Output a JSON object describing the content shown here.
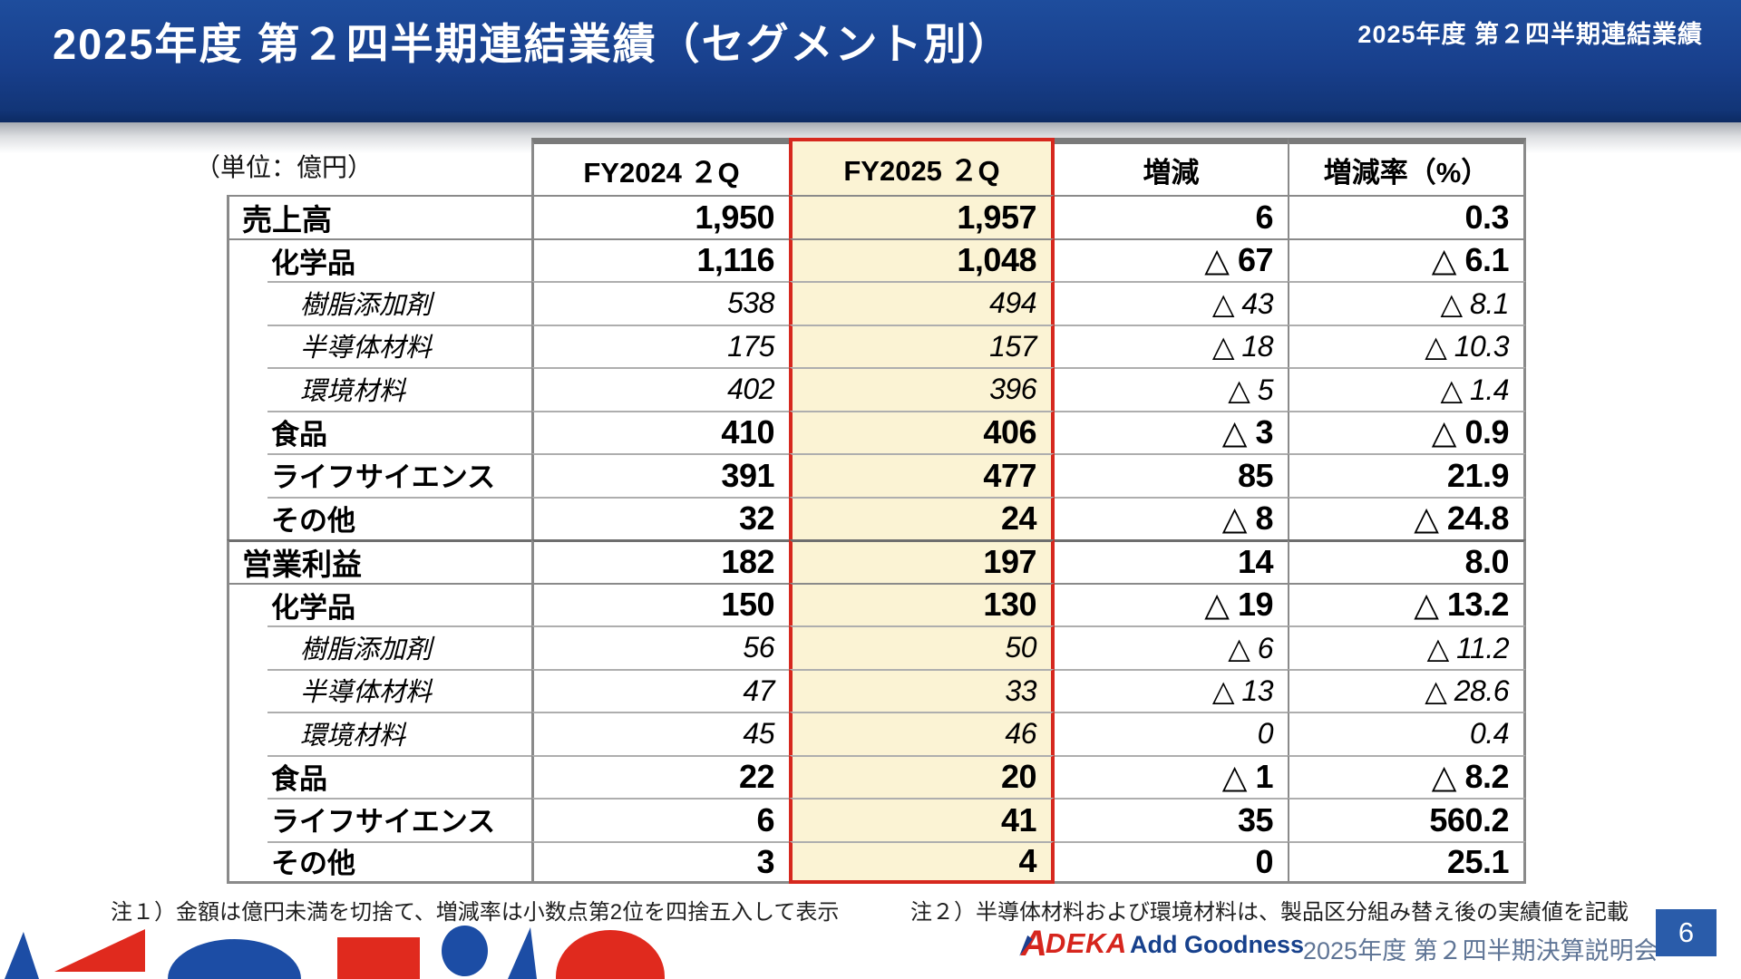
{
  "header": {
    "title": "2025年度 第２四半期連結業績（セグメント別）",
    "corner_label": "2025年度 第２四半期連結業績"
  },
  "table": {
    "unit_label": "（単位：億円）",
    "columns": [
      "FY2024 ２Q",
      "FY2025 ２Q",
      "増減",
      "増減率（%）"
    ],
    "rows": [
      {
        "label": "売上高",
        "level": 0,
        "italic": false,
        "sep": "major",
        "values": [
          "1,950",
          "1,957",
          "6",
          "0.3"
        ]
      },
      {
        "label": "化学品",
        "level": 1,
        "italic": false,
        "sep": "major",
        "values": [
          "1,116",
          "1,048",
          "△ 67",
          "△ 6.1"
        ]
      },
      {
        "label": "樹脂添加剤",
        "level": 2,
        "italic": true,
        "sep": "minor",
        "values": [
          "538",
          "494",
          "△ 43",
          "△ 8.1"
        ]
      },
      {
        "label": "半導体材料",
        "level": 2,
        "italic": true,
        "sep": "minor",
        "values": [
          "175",
          "157",
          "△ 18",
          "△ 10.3"
        ]
      },
      {
        "label": "環境材料",
        "level": 2,
        "italic": true,
        "sep": "minor",
        "values": [
          "402",
          "396",
          "△ 5",
          "△ 1.4"
        ]
      },
      {
        "label": "食品",
        "level": 1,
        "italic": false,
        "sep": "minor",
        "values": [
          "410",
          "406",
          "△ 3",
          "△ 0.9"
        ]
      },
      {
        "label": "ライフサイエンス",
        "level": 1,
        "italic": false,
        "sep": "minor",
        "values": [
          "391",
          "477",
          "85",
          "21.9"
        ]
      },
      {
        "label": "その他",
        "level": 1,
        "italic": false,
        "sep": "minor",
        "values": [
          "32",
          "24",
          "△ 8",
          "△ 24.8"
        ]
      },
      {
        "label": "営業利益",
        "level": 0,
        "italic": false,
        "sep": "section",
        "values": [
          "182",
          "197",
          "14",
          "8.0"
        ]
      },
      {
        "label": "化学品",
        "level": 1,
        "italic": false,
        "sep": "major",
        "values": [
          "150",
          "130",
          "△ 19",
          "△ 13.2"
        ]
      },
      {
        "label": "樹脂添加剤",
        "level": 2,
        "italic": true,
        "sep": "minor",
        "values": [
          "56",
          "50",
          "△ 6",
          "△ 11.2"
        ]
      },
      {
        "label": "半導体材料",
        "level": 2,
        "italic": true,
        "sep": "minor",
        "values": [
          "47",
          "33",
          "△ 13",
          "△ 28.6"
        ]
      },
      {
        "label": "環境材料",
        "level": 2,
        "italic": true,
        "sep": "minor",
        "values": [
          "45",
          "46",
          "0",
          "0.4"
        ]
      },
      {
        "label": "食品",
        "level": 1,
        "italic": false,
        "sep": "minor",
        "values": [
          "22",
          "20",
          "△ 1",
          "△ 8.2"
        ]
      },
      {
        "label": "ライフサイエンス",
        "level": 1,
        "italic": false,
        "sep": "minor",
        "values": [
          "6",
          "41",
          "35",
          "560.2"
        ]
      },
      {
        "label": "その他",
        "level": 1,
        "italic": false,
        "sep": "minor",
        "values": [
          "3",
          "4",
          "0",
          "25.1"
        ]
      }
    ]
  },
  "notes": {
    "note1": "注１）金額は億円未満を切捨て、増減率は小数点第2位を四捨五入して表示",
    "note2": "注２）半導体材料および環境材料は、製品区分組み替え後の実績値を記載"
  },
  "footer": {
    "brand_initial": "A",
    "brand_rest": "DEKA",
    "tagline": "Add Goodness",
    "event": "2025年度 第２四半期決算説明会",
    "page": "6",
    "deco_shapes": [
      {
        "type": "wedge",
        "color": "blue"
      },
      {
        "type": "triangle",
        "color": "red"
      },
      {
        "type": "dome",
        "color": "blue"
      },
      {
        "type": "square",
        "color": "red"
      },
      {
        "type": "ellipse",
        "color": "blue"
      },
      {
        "type": "sliver",
        "color": "blue"
      },
      {
        "type": "dome",
        "color": "red"
      }
    ]
  },
  "colors": {
    "header_blue": "#173f8c",
    "highlight_fill": "#fbf3d4",
    "highlight_border": "#d6281e",
    "table_border_gray": "#8a8a8a",
    "logo_red": "#d6251d",
    "tagline_navy": "#17418c",
    "event_slate": "#5f7596",
    "page_box_blue": "#2a5caa",
    "shape_blue": "#1c4da5",
    "shape_red": "#e02a1e"
  }
}
